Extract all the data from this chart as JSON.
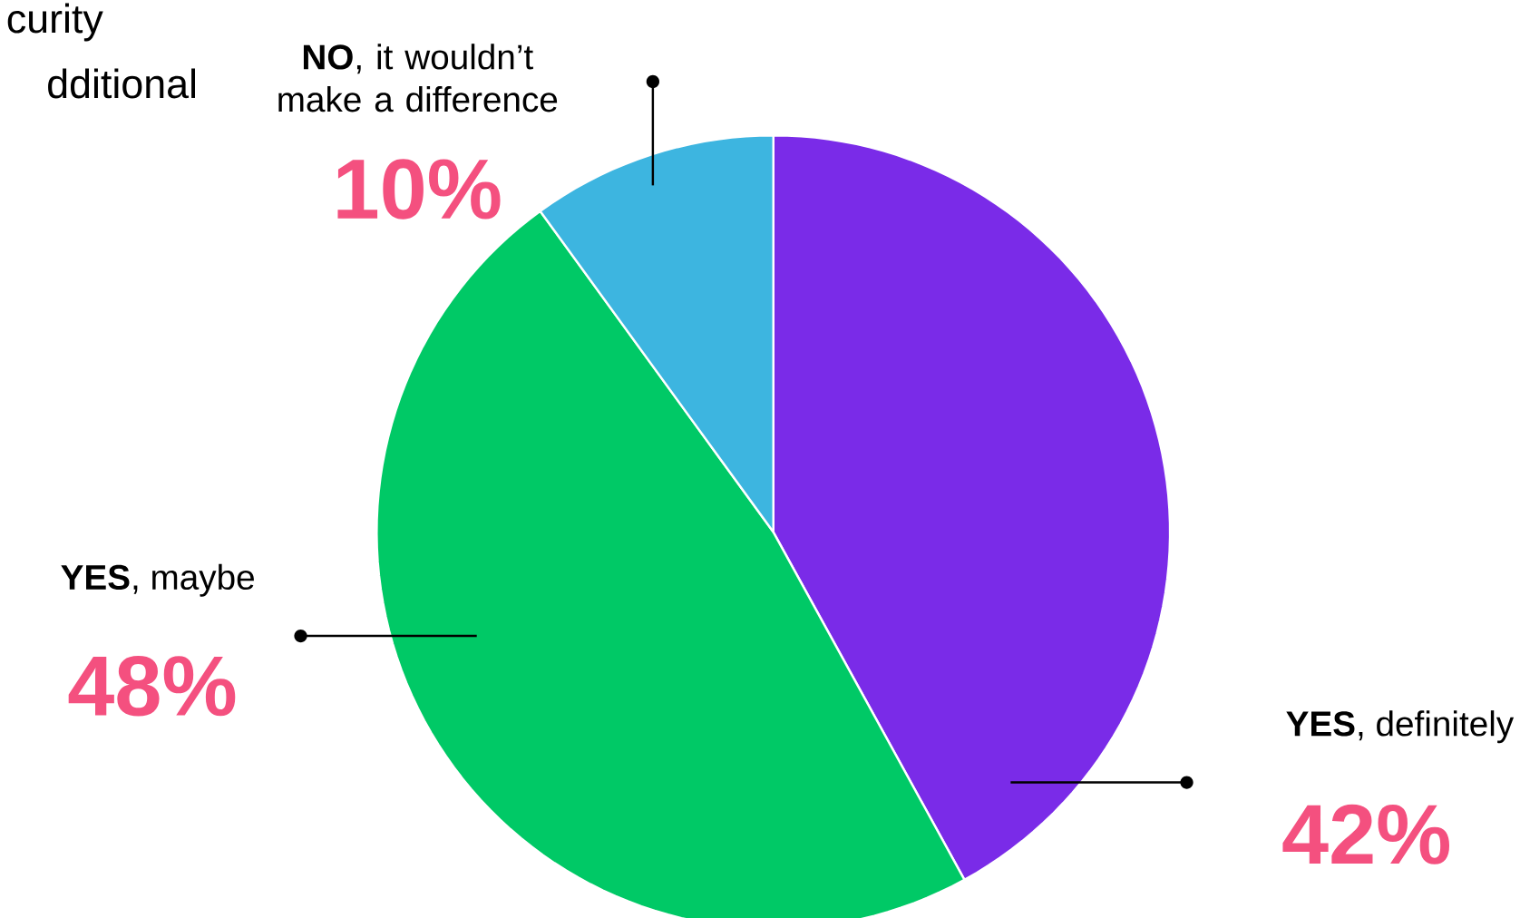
{
  "chart_data": {
    "type": "pie",
    "categories": [
      "**YES**, definitely",
      "**YES**, maybe",
      "**NO**, it wouldn’t make a difference"
    ],
    "values": [
      42,
      48,
      10
    ],
    "value_labels": [
      "42%",
      "48%",
      "10%"
    ],
    "colors": [
      "#7a2be8",
      "#00c966",
      "#3db5e0"
    ],
    "annotations": [
      "curity",
      "dditional"
    ]
  }
}
